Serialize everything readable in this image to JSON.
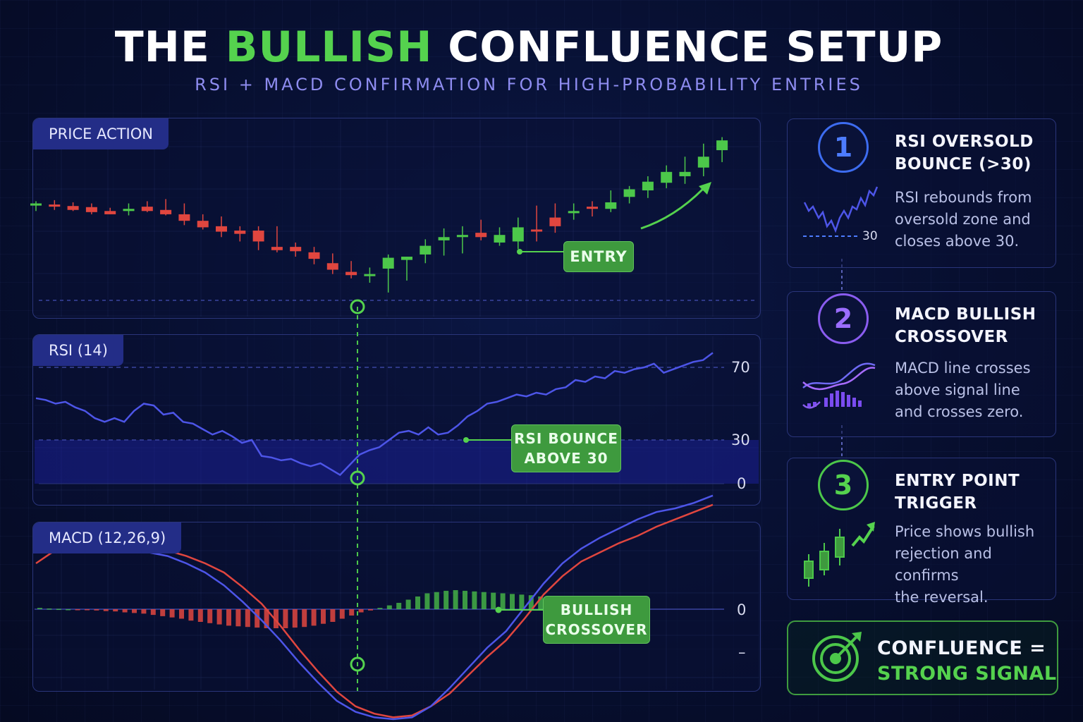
{
  "header": {
    "title_part1": "THE ",
    "title_highlight": "BULLISH",
    "title_part2": " CONFLUENCE SETUP",
    "subtitle": "RSI + MACD CONFIRMATION FOR HIGH-PROBABILITY ENTRIES"
  },
  "colors": {
    "bull": "#4cc74a",
    "bear": "#e0463f",
    "rsi_line": "#4d55e8",
    "macd_line": "#4d55e8",
    "signal_line": "#e0463f",
    "accent_green": "#55d24e"
  },
  "panels": {
    "price": {
      "tag": "PRICE ACTION",
      "callout": "ENTRY"
    },
    "rsi": {
      "tag": "RSI (14)",
      "levels": [
        "70",
        "30",
        "0"
      ],
      "callout_line1": "RSI BOUNCE",
      "callout_line2": "ABOVE 30"
    },
    "macd": {
      "tag": "MACD (12,26,9)",
      "levels": [
        "0",
        "–"
      ],
      "callout_line1": "BULLISH",
      "callout_line2": "CROSSOVER"
    }
  },
  "steps": [
    {
      "num": "1",
      "title_line1": "RSI OVERSOLD",
      "title_line2": "BOUNCE (>30)",
      "desc": [
        "RSI rebounds from",
        "oversold zone and",
        "closes above 30."
      ],
      "icon_label": "30",
      "color": "#3d6cf0",
      "icon": "rsi-mini-chart-icon"
    },
    {
      "num": "2",
      "title_line1": "MACD BULLISH",
      "title_line2": "CROSSOVER",
      "desc": [
        "MACD line crosses",
        "above signal line",
        "and crosses zero."
      ],
      "color": "#8a5cf0",
      "icon": "macd-mini-chart-icon"
    },
    {
      "num": "3",
      "title_line1": "ENTRY POINT",
      "title_line2": "TRIGGER",
      "desc": [
        "Price shows bullish",
        "rejection and confirms",
        "the reversal."
      ],
      "color": "#4cc74a",
      "icon": "candles-up-arrow-icon"
    }
  ],
  "confluence": {
    "line1": "CONFLUENCE =",
    "line2": "STRONG SIGNAL",
    "icon": "target-arrow-icon"
  },
  "chart_data": [
    {
      "type": "candlestick",
      "title": "PRICE ACTION",
      "x": [
        1,
        2,
        3,
        4,
        5,
        6,
        7,
        8,
        9,
        10,
        11,
        12,
        13,
        14,
        15,
        16,
        17,
        18,
        19,
        20,
        21,
        22,
        23,
        24,
        25,
        26,
        27,
        28,
        29,
        30,
        31,
        32,
        33,
        34,
        35,
        36,
        37,
        38
      ],
      "open": [
        57.5,
        58.0,
        57.3,
        56.8,
        55.0,
        55.0,
        57.0,
        55.5,
        53.5,
        50.5,
        48.0,
        46.0,
        46.0,
        38.5,
        38.5,
        36.0,
        31.0,
        27.0,
        25.3,
        28.5,
        32.5,
        35.0,
        41.5,
        43.0,
        45.0,
        40.5,
        41.0,
        46.5,
        52.0,
        54.0,
        57.0,
        56.0,
        61.5,
        64.5,
        68.0,
        71.0,
        75.0,
        83.0
      ],
      "high": [
        59.5,
        60.0,
        59.0,
        58.5,
        56.5,
        58.5,
        59.5,
        60.5,
        58.5,
        53.5,
        52.5,
        48.0,
        48.0,
        48.0,
        40.5,
        38.5,
        35.5,
        32.0,
        29.0,
        35.0,
        34.0,
        42.0,
        47.0,
        48.0,
        51.0,
        47.5,
        52.0,
        57.5,
        58.5,
        58.5,
        59.5,
        64.5,
        66.5,
        71.0,
        76.0,
        80.0,
        86.0,
        89.0
      ],
      "low": [
        55.0,
        55.5,
        55.0,
        53.5,
        53.5,
        53.0,
        54.5,
        53.0,
        48.5,
        46.5,
        43.0,
        41.0,
        37.0,
        36.0,
        34.0,
        30.5,
        26.0,
        24.0,
        22.0,
        17.5,
        23.0,
        31.0,
        34.5,
        35.5,
        41.5,
        39.0,
        37.5,
        41.0,
        45.0,
        51.0,
        52.5,
        54.5,
        58.5,
        61.0,
        65.5,
        67.5,
        71.0,
        77.5
      ],
      "close": [
        58.5,
        57.0,
        55.5,
        54.5,
        53.5,
        56.0,
        55.0,
        53.5,
        50.5,
        47.5,
        45.5,
        44.5,
        41.0,
        37.0,
        36.5,
        33.0,
        28.0,
        25.5,
        26.0,
        33.5,
        34.0,
        39.0,
        43.0,
        44.0,
        43.0,
        44.0,
        47.5,
        46.0,
        48.0,
        55.0,
        56.0,
        59.0,
        65.0,
        68.5,
        73.0,
        73.0,
        80.0,
        87.5
      ]
    },
    {
      "type": "line",
      "title": "RSI (14)",
      "levels": [
        70,
        30,
        0
      ],
      "ylim": [
        0,
        80
      ],
      "series": [
        {
          "values": [
            53,
            52,
            50,
            51,
            48,
            46,
            42,
            40,
            42,
            40,
            46,
            50,
            49,
            44,
            45,
            40,
            39,
            36,
            33,
            35,
            32,
            28,
            30,
            19,
            18,
            16,
            17,
            14,
            12,
            14,
            10,
            6,
            13,
            20,
            23,
            25,
            30,
            34,
            35,
            33,
            37,
            33,
            34,
            38,
            43,
            46,
            50,
            51,
            53,
            55,
            54,
            56,
            55,
            58,
            59,
            63,
            62,
            65,
            64,
            68,
            67,
            69,
            70,
            72,
            67,
            69,
            71,
            73,
            74,
            78
          ]
        }
      ]
    },
    {
      "type": "line",
      "title": "MACD (12,26,9)",
      "levels": [
        0
      ],
      "ylim": [
        -7,
        6
      ],
      "series": [
        {
          "values": [
            3.2,
            3.6,
            3.8,
            3.9,
            3.85,
            3.5,
            3.1,
            2.9,
            2.5,
            2.0,
            1.3,
            0.4,
            -0.6,
            -1.7,
            -2.9,
            -4.0,
            -5.0,
            -5.6,
            -5.9,
            -6.0,
            -5.9,
            -5.3,
            -4.3,
            -3.2,
            -2.1,
            -1.2,
            0.1,
            1.4,
            2.5,
            3.3,
            3.9,
            4.4,
            4.9,
            5.3,
            5.5,
            5.8,
            6.2
          ]
        },
        {
          "values": [
            2.5,
            3.2,
            3.6,
            3.75,
            3.7,
            3.55,
            3.4,
            3.2,
            2.9,
            2.5,
            2.0,
            1.2,
            0.3,
            -0.9,
            -2.2,
            -3.4,
            -4.5,
            -5.3,
            -5.7,
            -5.9,
            -5.8,
            -5.3,
            -4.6,
            -3.6,
            -2.6,
            -1.7,
            -0.5,
            0.8,
            1.8,
            2.6,
            3.1,
            3.6,
            4.0,
            4.5,
            4.9,
            5.3,
            5.7
          ]
        }
      ],
      "histogram": [
        0.2,
        0.1,
        0.05,
        0,
        -0.05,
        -0.1,
        -0.2,
        -0.3,
        -0.35,
        -0.5,
        -0.6,
        -0.7,
        -0.9,
        -1.1,
        -1.3,
        -1.5,
        -1.8,
        -2.0,
        -2.2,
        -2.4,
        -2.6,
        -2.7,
        -2.8,
        -2.9,
        -3.0,
        -3.0,
        -3.0,
        -2.9,
        -2.8,
        -2.6,
        -2.3,
        -2.0,
        -1.5,
        -1.0,
        -0.5,
        -0.2,
        0.2,
        0.6,
        1.0,
        1.5,
        2.0,
        2.5,
        2.7,
        2.9,
        3.0,
        2.9,
        2.8,
        2.7,
        2.6,
        2.5,
        2.4,
        2.3,
        2.2,
        2.0,
        1.8
      ]
    }
  ]
}
